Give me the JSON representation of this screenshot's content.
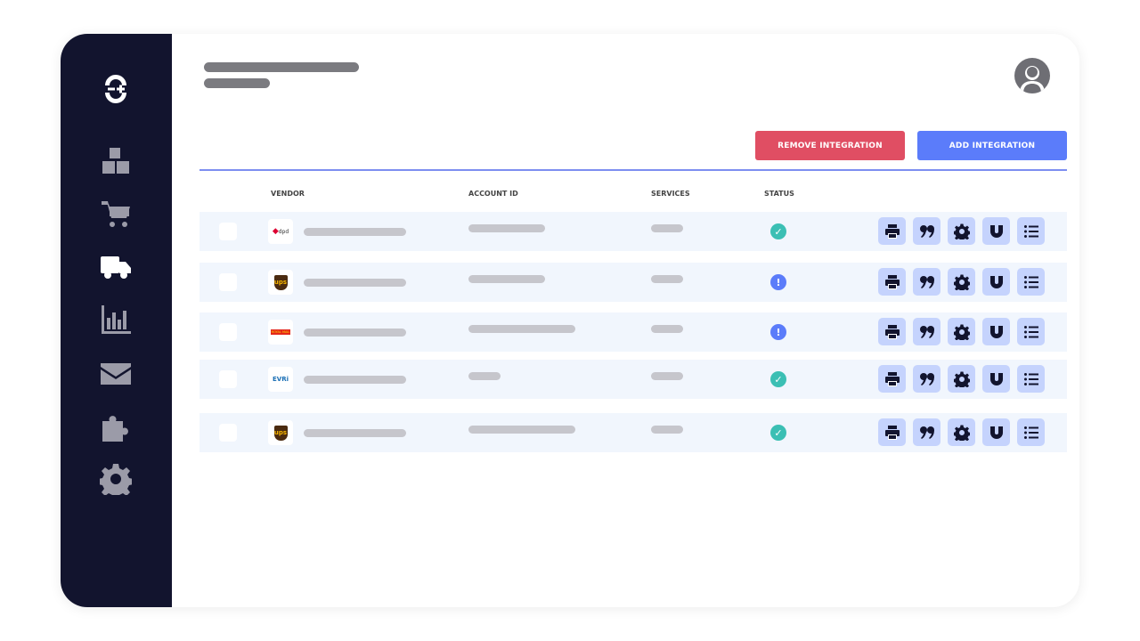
{
  "header": {
    "avatar_icon": "user-avatar-icon"
  },
  "toolbar": {
    "remove_label": "REMOVE INTEGRATION",
    "add_label": "ADD INTEGRATION",
    "remove_color": "#e04e63",
    "add_color": "#5b7cfa"
  },
  "sidebar": {
    "items": [
      "logo-icon",
      "boxes-icon",
      "cart-icon",
      "truck-icon",
      "chart-icon",
      "mail-icon",
      "puzzle-icon",
      "gear-icon"
    ],
    "active": "truck-icon"
  },
  "table": {
    "headers": {
      "vendor": "VENDOR",
      "account": "ACCOUNT ID",
      "services": "SERVICES",
      "status": "STATUS"
    },
    "rows": [
      {
        "vendor": "dpd",
        "status": "ok"
      },
      {
        "vendor": "ups",
        "status": "warning"
      },
      {
        "vendor": "Royal Mail",
        "status": "warning"
      },
      {
        "vendor": "EVRi",
        "status": "ok"
      },
      {
        "vendor": "ups",
        "status": "ok"
      }
    ],
    "actions": [
      "printer-icon",
      "quote-icon",
      "gear-icon",
      "magnet-icon",
      "list-icon"
    ],
    "status_colors": {
      "ok": "#3bbfb4",
      "warning": "#5b7cfa"
    }
  }
}
